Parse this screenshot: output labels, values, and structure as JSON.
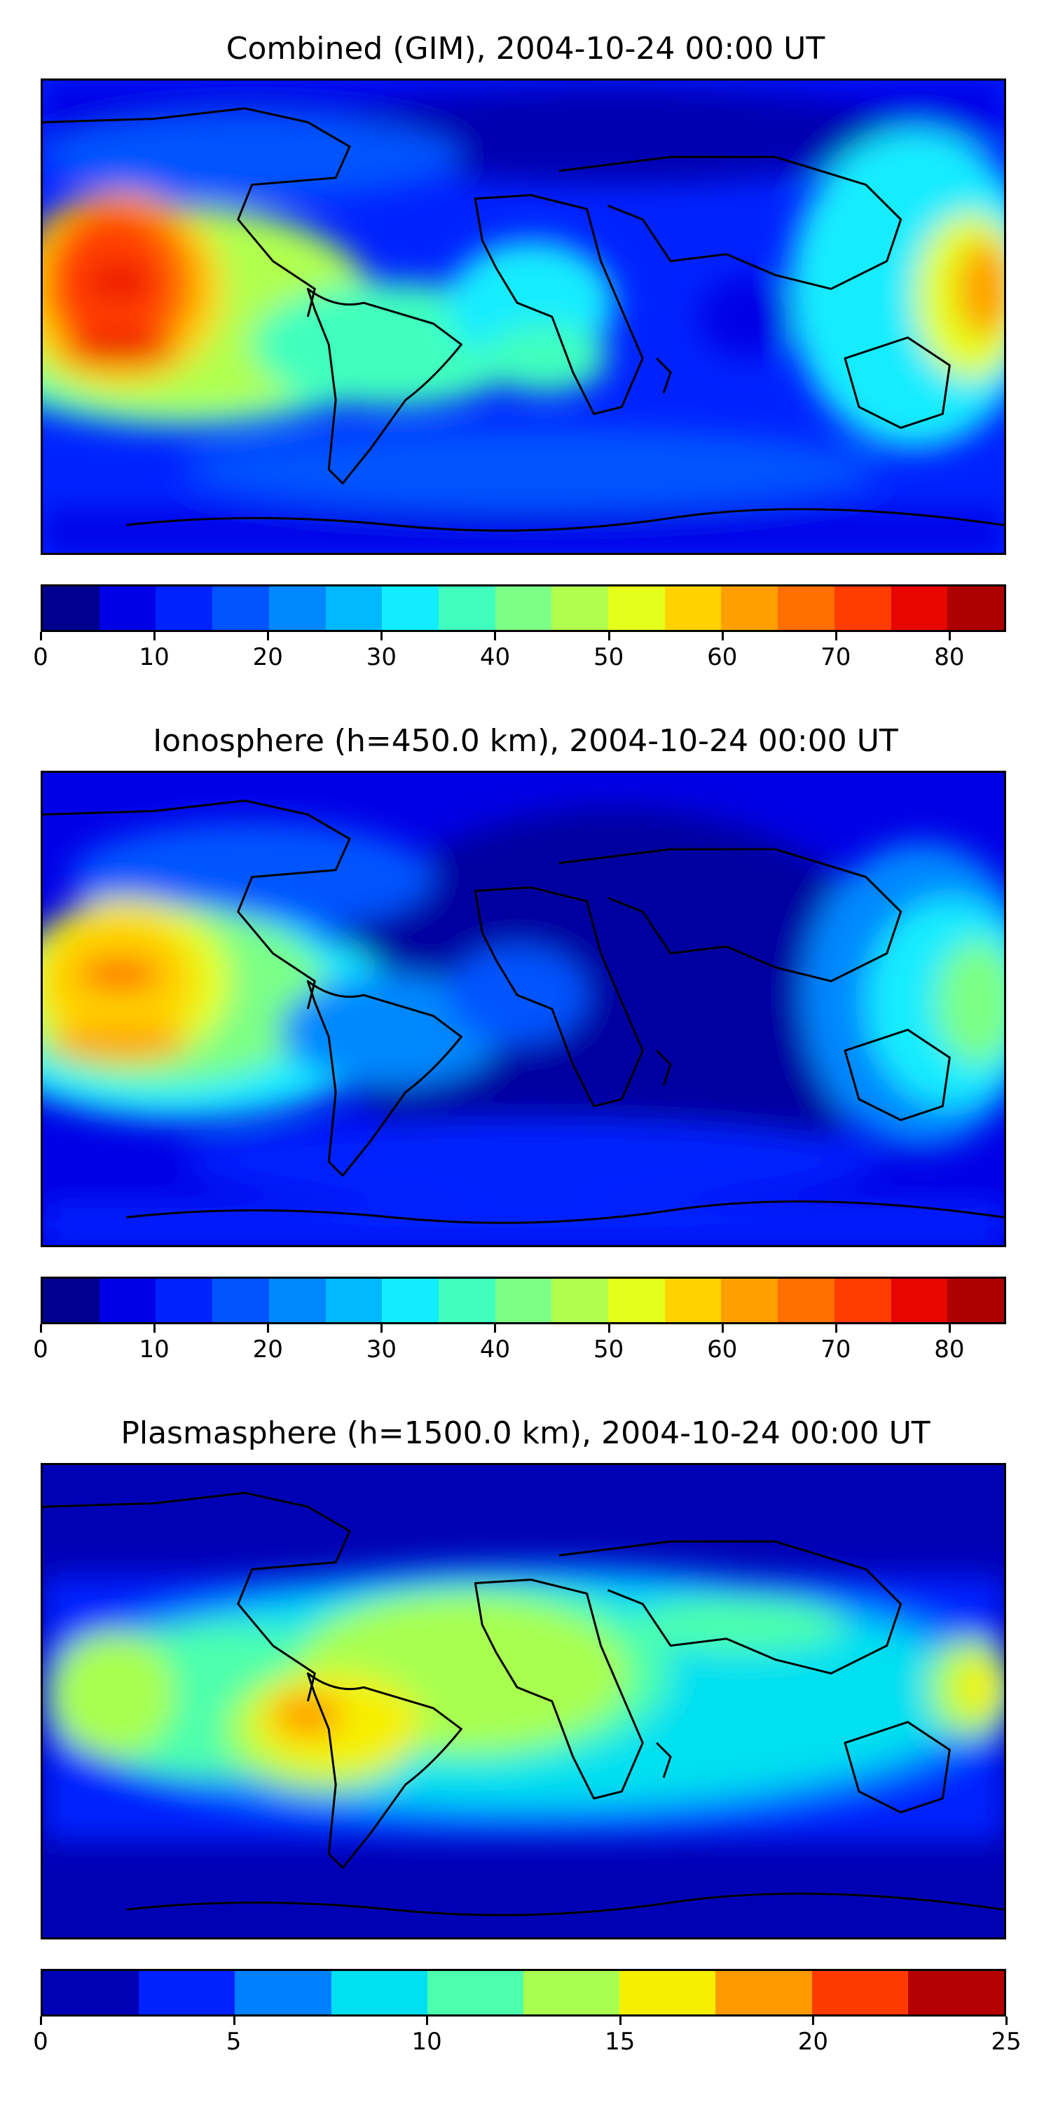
{
  "panels": [
    {
      "title": "Combined (GIM), 2004-10-24 00:00 UT",
      "colorbar": {
        "min": 0,
        "max": 85,
        "step": 5,
        "ticks": [
          "0",
          "10",
          "20",
          "30",
          "40",
          "50",
          "60",
          "70",
          "80"
        ],
        "colors": [
          "#00008f",
          "#0000e6",
          "#0022ff",
          "#0055ff",
          "#0088ff",
          "#00b9ff",
          "#12ecff",
          "#40ffbe",
          "#7bff85",
          "#b0ff4f",
          "#e4ff1b",
          "#ffd200",
          "#ffa000",
          "#ff6e00",
          "#ff3c00",
          "#e60500",
          "#ad0000"
        ]
      }
    },
    {
      "title": "Ionosphere  (h=450.0 km), 2004-10-24 00:00 UT",
      "colorbar": {
        "min": 0,
        "max": 85,
        "step": 5,
        "ticks": [
          "0",
          "10",
          "20",
          "30",
          "40",
          "50",
          "60",
          "70",
          "80"
        ],
        "colors": [
          "#00008f",
          "#0000e6",
          "#0022ff",
          "#0055ff",
          "#0088ff",
          "#00b9ff",
          "#12ecff",
          "#40ffbe",
          "#7bff85",
          "#b0ff4f",
          "#e4ff1b",
          "#ffd200",
          "#ffa000",
          "#ff6e00",
          "#ff3c00",
          "#e60500",
          "#ad0000"
        ]
      }
    },
    {
      "title": "Plasmasphere (h=1500.0 km), 2004-10-24 00:00 UT",
      "colorbar": {
        "min": 0,
        "max": 25,
        "step": 2.5,
        "ticks": [
          "0",
          "5",
          "10",
          "15",
          "20",
          "25"
        ],
        "colors": [
          "#0000b4",
          "#0022ff",
          "#0080ff",
          "#00e0f0",
          "#4cffad",
          "#a8ff50",
          "#f6f000",
          "#ff9a00",
          "#ff3a00",
          "#b40000"
        ]
      }
    }
  ]
}
